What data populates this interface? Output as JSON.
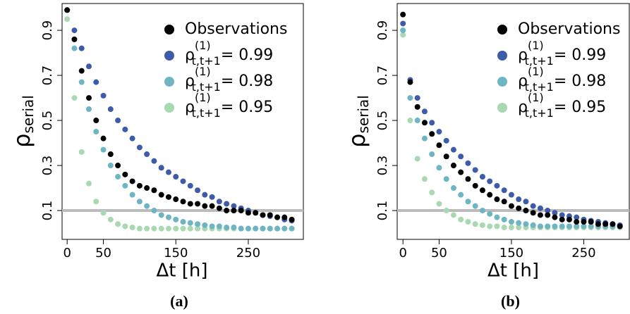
{
  "chart_data": [
    {
      "type": "scatter",
      "caption": "(a)",
      "xlabel": "Δt [h]",
      "ylabel": {
        "base": "ρ",
        "sub": "serial"
      },
      "xlim": [
        -7,
        326
      ],
      "ylim": [
        -0.028,
        1.019
      ],
      "xticks": [
        0,
        50,
        150,
        250
      ],
      "yticks": [
        0.1,
        0.3,
        0.5,
        0.7,
        0.9
      ],
      "hline": 0.1,
      "hline_color": "#bbbbbb",
      "legend": "upper right",
      "x": [
        0,
        10,
        20,
        30,
        40,
        50,
        60,
        70,
        80,
        90,
        100,
        110,
        120,
        130,
        140,
        150,
        160,
        170,
        180,
        190,
        200,
        210,
        220,
        230,
        240,
        250,
        260,
        270,
        280,
        290,
        300,
        310
      ],
      "series": [
        {
          "name": "Observations",
          "color": "#000000",
          "values": [
            0.99,
            0.86,
            0.72,
            0.6,
            0.5,
            0.42,
            0.35,
            0.3,
            0.26,
            0.23,
            0.21,
            0.2,
            0.19,
            0.17,
            0.16,
            0.15,
            0.14,
            0.13,
            0.13,
            0.12,
            0.12,
            0.11,
            0.1,
            0.1,
            0.1,
            0.09,
            0.09,
            0.08,
            0.08,
            0.07,
            0.07,
            0.06
          ]
        },
        {
          "name": "= 0.99",
          "symbol": {
            "base": "ρ",
            "sup": "(1)",
            "sub": "t,t+1"
          },
          "color": "#3d5ba9",
          "values": [
            0.99,
            0.9,
            0.82,
            0.74,
            0.67,
            0.61,
            0.55,
            0.5,
            0.46,
            0.42,
            0.38,
            0.35,
            0.32,
            0.29,
            0.27,
            0.25,
            0.23,
            0.21,
            0.19,
            0.17,
            0.16,
            0.14,
            0.13,
            0.12,
            0.11,
            0.1,
            0.09,
            0.08,
            0.075,
            0.07,
            0.06,
            0.055
          ]
        },
        {
          "name": "= 0.98",
          "symbol": {
            "base": "ρ",
            "sup": "(1)",
            "sub": "t,t+1"
          },
          "color": "#6db5c2",
          "values": [
            0.99,
            0.82,
            0.67,
            0.55,
            0.45,
            0.37,
            0.3,
            0.25,
            0.21,
            0.17,
            0.14,
            0.12,
            0.1,
            0.08,
            0.07,
            0.06,
            0.05,
            0.045,
            0.04,
            0.035,
            0.03,
            0.03,
            0.025,
            0.025,
            0.02,
            0.02,
            0.02,
            0.02,
            0.02,
            0.02,
            0.02,
            0.02
          ]
        },
        {
          "name": "= 0.95",
          "symbol": {
            "base": "ρ",
            "sup": "(1)",
            "sub": "t,t+1"
          },
          "color": "#a9d9b1",
          "values": [
            0.95,
            0.6,
            0.36,
            0.22,
            0.14,
            0.09,
            0.06,
            0.04,
            0.03,
            0.025,
            0.02,
            0.02,
            0.02,
            0.02,
            0.02,
            0.02,
            0.02,
            0.02,
            0.02,
            0.02,
            0.02,
            0.02,
            0.02,
            0.02,
            0.02,
            0.02,
            0.02,
            0.02,
            0.02,
            0.02,
            0.02,
            0.02
          ]
        }
      ]
    },
    {
      "type": "scatter",
      "caption": "(b)",
      "xlabel": "Δt [h]",
      "ylabel": {
        "base": "ρ",
        "sub": "serial"
      },
      "xlim": [
        -8,
        313
      ],
      "ylim": [
        -0.028,
        1.019
      ],
      "xticks": [
        0,
        50,
        150,
        250
      ],
      "yticks": [
        0.1,
        0.3,
        0.5,
        0.7,
        0.9
      ],
      "hline": 0.1,
      "hline_color": "#bbbbbb",
      "legend": "upper right",
      "x": [
        0,
        10,
        20,
        30,
        40,
        50,
        60,
        70,
        80,
        90,
        100,
        110,
        120,
        130,
        140,
        150,
        160,
        170,
        180,
        190,
        200,
        210,
        220,
        230,
        240,
        250,
        260,
        270,
        280,
        290,
        300
      ],
      "series": [
        {
          "name": "Observations",
          "color": "#000000",
          "values": [
            0.97,
            0.67,
            0.56,
            0.49,
            0.44,
            0.39,
            0.34,
            0.3,
            0.27,
            0.24,
            0.21,
            0.19,
            0.17,
            0.15,
            0.14,
            0.12,
            0.11,
            0.1,
            0.09,
            0.08,
            0.08,
            0.07,
            0.06,
            0.06,
            0.05,
            0.05,
            0.05,
            0.04,
            0.04,
            0.04,
            0.03
          ]
        },
        {
          "name": "= 0.99",
          "symbol": {
            "base": "ρ",
            "sup": "(1)",
            "sub": "t,t+1"
          },
          "color": "#3d5ba9",
          "values": [
            0.93,
            0.68,
            0.6,
            0.54,
            0.49,
            0.45,
            0.41,
            0.37,
            0.34,
            0.31,
            0.28,
            0.25,
            0.23,
            0.21,
            0.19,
            0.17,
            0.15,
            0.14,
            0.12,
            0.11,
            0.1,
            0.09,
            0.08,
            0.075,
            0.07,
            0.06,
            0.055,
            0.05,
            0.045,
            0.04,
            0.035
          ]
        },
        {
          "name": "= 0.98",
          "symbol": {
            "base": "ρ",
            "sup": "(1)",
            "sub": "t,t+1"
          },
          "color": "#6db5c2",
          "values": [
            0.9,
            0.6,
            0.5,
            0.42,
            0.35,
            0.29,
            0.24,
            0.2,
            0.17,
            0.14,
            0.12,
            0.1,
            0.085,
            0.07,
            0.06,
            0.05,
            0.045,
            0.04,
            0.035,
            0.03,
            0.03,
            0.03,
            0.03,
            0.03,
            0.03,
            0.03,
            0.03,
            0.03,
            0.03,
            0.03,
            0.03
          ]
        },
        {
          "name": "= 0.95",
          "symbol": {
            "base": "ρ",
            "sup": "(1)",
            "sub": "t,t+1"
          },
          "color": "#a9d9b1",
          "values": [
            0.88,
            0.5,
            0.33,
            0.24,
            0.18,
            0.13,
            0.1,
            0.08,
            0.06,
            0.05,
            0.04,
            0.035,
            0.03,
            0.03,
            0.025,
            0.025,
            0.025,
            0.025,
            0.025,
            0.025,
            0.025,
            0.025,
            0.025,
            0.025,
            0.025,
            0.025,
            0.025,
            0.025,
            0.025,
            0.025,
            0.025
          ]
        }
      ]
    }
  ]
}
